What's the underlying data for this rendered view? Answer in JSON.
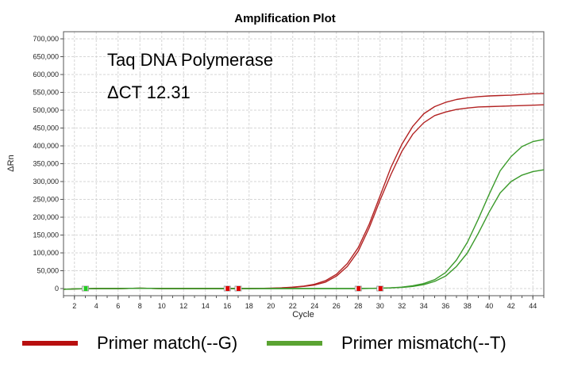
{
  "chart_data": {
    "type": "line",
    "title": "Amplification Plot",
    "xlabel": "Cycle",
    "ylabel": "ΔRn",
    "xlim": [
      1,
      45
    ],
    "ylim": [
      -20000,
      720000
    ],
    "x_ticks": [
      2,
      4,
      6,
      8,
      10,
      12,
      14,
      16,
      18,
      20,
      22,
      24,
      26,
      28,
      30,
      32,
      34,
      36,
      38,
      40,
      42,
      44
    ],
    "y_ticks": [
      0,
      50000,
      100000,
      150000,
      200000,
      250000,
      300000,
      350000,
      400000,
      450000,
      500000,
      550000,
      600000,
      650000,
      700000
    ],
    "y_tick_labels": [
      "0",
      "50,000",
      "100,000",
      "150,000",
      "200,000",
      "250,000",
      "300,000",
      "350,000",
      "400,000",
      "450,000",
      "500,000",
      "550,000",
      "600,000",
      "650,000",
      "700,000"
    ],
    "grid": true,
    "annotations": [
      "Taq DNA Polymerase",
      "ΔCT 12.31"
    ],
    "series": [
      {
        "name": "Primer match(--G)",
        "color": "#b22222",
        "x": [
          1,
          2,
          4,
          6,
          8,
          10,
          12,
          14,
          16,
          18,
          20,
          21,
          22,
          23,
          24,
          25,
          26,
          27,
          28,
          29,
          30,
          31,
          32,
          33,
          34,
          35,
          36,
          37,
          38,
          39,
          40,
          41,
          42,
          43,
          44,
          45
        ],
        "y": [
          -2000,
          -1000,
          0,
          0,
          1000,
          0,
          0,
          0,
          0,
          0,
          1000,
          2000,
          4000,
          7000,
          12000,
          22000,
          40000,
          70000,
          115000,
          180000,
          260000,
          340000,
          405000,
          455000,
          490000,
          510000,
          522000,
          530000,
          535000,
          538000,
          540000,
          541000,
          542000,
          544000,
          546000,
          547000
        ]
      },
      {
        "name": "Primer match(--G)",
        "color": "#b22222",
        "x": [
          1,
          2,
          4,
          6,
          8,
          10,
          12,
          14,
          16,
          18,
          20,
          21,
          22,
          23,
          24,
          25,
          26,
          27,
          28,
          29,
          30,
          31,
          32,
          33,
          34,
          35,
          36,
          37,
          38,
          39,
          40,
          41,
          42,
          43,
          44,
          45
        ],
        "y": [
          -2000,
          -1000,
          0,
          0,
          1000,
          0,
          0,
          0,
          0,
          0,
          1000,
          2000,
          3000,
          6000,
          10000,
          18000,
          35000,
          62000,
          105000,
          170000,
          248000,
          320000,
          385000,
          433000,
          465000,
          485000,
          495000,
          502000,
          506000,
          509000,
          510000,
          511000,
          512000,
          513000,
          514000,
          515000
        ]
      },
      {
        "name": "Primer mismatch(--T)",
        "color": "#3a9a2a",
        "x": [
          1,
          2,
          4,
          6,
          8,
          10,
          12,
          14,
          16,
          18,
          20,
          22,
          24,
          26,
          28,
          30,
          31,
          32,
          33,
          34,
          35,
          36,
          37,
          38,
          39,
          40,
          41,
          42,
          43,
          44,
          45
        ],
        "y": [
          -2000,
          -1000,
          0,
          0,
          1000,
          0,
          0,
          0,
          0,
          0,
          0,
          0,
          0,
          0,
          0,
          1000,
          2000,
          4000,
          8000,
          14000,
          25000,
          45000,
          80000,
          130000,
          195000,
          265000,
          330000,
          370000,
          398000,
          412000,
          418000
        ]
      },
      {
        "name": "Primer mismatch(--T)",
        "color": "#3a9a2a",
        "x": [
          1,
          2,
          4,
          6,
          8,
          10,
          12,
          14,
          16,
          18,
          20,
          22,
          24,
          26,
          28,
          30,
          31,
          32,
          33,
          34,
          35,
          36,
          37,
          38,
          39,
          40,
          41,
          42,
          43,
          44,
          45
        ],
        "y": [
          -2000,
          -1000,
          0,
          0,
          1000,
          0,
          0,
          0,
          0,
          0,
          0,
          0,
          0,
          0,
          0,
          1000,
          2000,
          3000,
          6000,
          11000,
          20000,
          35000,
          62000,
          100000,
          155000,
          215000,
          268000,
          300000,
          318000,
          328000,
          333000
        ]
      }
    ],
    "threshold_markers": [
      {
        "x": 3,
        "color": "#22cc22"
      },
      {
        "x": 16,
        "color": "#dd0000"
      },
      {
        "x": 17,
        "color": "#dd0000"
      },
      {
        "x": 28,
        "color": "#dd0000"
      },
      {
        "x": 30,
        "color": "#dd0000"
      }
    ]
  },
  "legend": [
    {
      "label": "Primer match(--G)",
      "color": "#b80f0f"
    },
    {
      "label": "Primer mismatch(--T)",
      "color": "#5aa332"
    }
  ]
}
